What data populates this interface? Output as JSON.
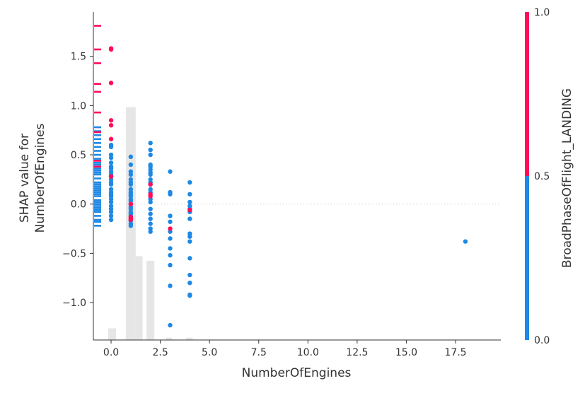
{
  "colors": {
    "low": "#1E88E5",
    "high": "#FF0D57",
    "hist": "#e6e6e6",
    "axis": "#333333",
    "zero_line": "#cccccc"
  },
  "chart_data": {
    "type": "scatter",
    "title": "",
    "xlabel": "NumberOfEngines",
    "ylabel_lines": [
      "SHAP value for",
      "NumberOfEngines"
    ],
    "xlim": [
      -0.9,
      19.8
    ],
    "ylim": [
      -1.38,
      1.95
    ],
    "xticks": [
      0.0,
      2.5,
      5.0,
      7.5,
      10.0,
      12.5,
      15.0,
      17.5
    ],
    "xtick_labels": [
      "0.0",
      "2.5",
      "5.0",
      "7.5",
      "10.0",
      "12.5",
      "15.0",
      "17.5"
    ],
    "yticks": [
      -1.0,
      -0.5,
      0.0,
      0.5,
      1.0,
      1.5
    ],
    "ytick_labels": [
      "−1.0",
      "−0.5",
      "0.0",
      "0.5",
      "1.0",
      "1.5"
    ],
    "zero_line": true,
    "colorbar": {
      "label": "BroadPhaseOfFlight_LANDING",
      "min_label": "0.0",
      "mid_label": "0.5",
      "max_label": "1.0",
      "split": 0.5
    },
    "missing_ticks_low": [
      0.78,
      0.74,
      0.7,
      0.66,
      0.62,
      0.58,
      0.54,
      0.5,
      0.46,
      0.42,
      0.4,
      0.38,
      0.36,
      0.34,
      0.32,
      0.3,
      0.26,
      0.22,
      0.2,
      0.18,
      0.16,
      0.14,
      0.12,
      0.1,
      0.08,
      0.04,
      0.02,
      0.0,
      -0.02,
      -0.04,
      -0.06,
      -0.08,
      -0.12,
      -0.16,
      -0.18,
      -0.22
    ],
    "missing_ticks_high": [
      1.81,
      1.57,
      1.43,
      1.22,
      1.14,
      0.93,
      0.73,
      0.44,
      0.38
    ],
    "histogram": [
      {
        "x0": -0.15,
        "x1": 0.25,
        "height": 0.05
      },
      {
        "x0": 0.75,
        "x1": 1.25,
        "height": 1.0
      },
      {
        "x0": 1.25,
        "x1": 1.6,
        "height": 0.36
      },
      {
        "x0": 1.8,
        "x1": 2.2,
        "height": 0.34
      },
      {
        "x0": 2.8,
        "x1": 3.1,
        "height": 0.01
      },
      {
        "x0": 3.8,
        "x1": 4.15,
        "height": 0.01
      }
    ],
    "points_low": [
      [
        0.0,
        0.6
      ],
      [
        0.0,
        0.58
      ],
      [
        0.0,
        0.5
      ],
      [
        0.0,
        0.47
      ],
      [
        0.0,
        0.42
      ],
      [
        0.0,
        0.38
      ],
      [
        0.0,
        0.36
      ],
      [
        0.0,
        0.33
      ],
      [
        0.0,
        0.3
      ],
      [
        0.0,
        0.25
      ],
      [
        0.0,
        0.22
      ],
      [
        0.0,
        0.2
      ],
      [
        0.0,
        0.15
      ],
      [
        0.0,
        0.12
      ],
      [
        0.0,
        0.08
      ],
      [
        0.0,
        0.05
      ],
      [
        0.0,
        0.02
      ],
      [
        0.0,
        -0.02
      ],
      [
        0.0,
        -0.05
      ],
      [
        0.0,
        -0.08
      ],
      [
        0.0,
        -0.12
      ],
      [
        0.0,
        -0.16
      ],
      [
        0.0,
        0.28
      ],
      [
        0.0,
        0.1
      ],
      [
        1.0,
        0.48
      ],
      [
        1.0,
        0.4
      ],
      [
        1.0,
        0.33
      ],
      [
        1.0,
        0.3
      ],
      [
        1.0,
        0.25
      ],
      [
        1.0,
        0.22
      ],
      [
        1.0,
        0.2
      ],
      [
        1.0,
        0.15
      ],
      [
        1.0,
        0.12
      ],
      [
        1.0,
        0.1
      ],
      [
        1.0,
        0.08
      ],
      [
        1.0,
        0.05
      ],
      [
        1.0,
        0.03
      ],
      [
        1.0,
        0.0
      ],
      [
        1.0,
        -0.03
      ],
      [
        1.0,
        -0.05
      ],
      [
        1.0,
        -0.08
      ],
      [
        1.0,
        -0.1
      ],
      [
        1.0,
        -0.12
      ],
      [
        1.0,
        -0.17
      ],
      [
        1.0,
        -0.2
      ],
      [
        1.0,
        -0.22
      ],
      [
        2.0,
        0.62
      ],
      [
        2.0,
        0.55
      ],
      [
        2.0,
        0.5
      ],
      [
        2.0,
        0.4
      ],
      [
        2.0,
        0.38
      ],
      [
        2.0,
        0.35
      ],
      [
        2.0,
        0.32
      ],
      [
        2.0,
        0.3
      ],
      [
        2.0,
        0.25
      ],
      [
        2.0,
        0.22
      ],
      [
        2.0,
        0.2
      ],
      [
        2.0,
        0.15
      ],
      [
        2.0,
        0.12
      ],
      [
        2.0,
        0.05
      ],
      [
        2.0,
        0.02
      ],
      [
        2.0,
        -0.05
      ],
      [
        2.0,
        -0.1
      ],
      [
        2.0,
        -0.15
      ],
      [
        2.0,
        -0.2
      ],
      [
        2.0,
        -0.25
      ],
      [
        2.0,
        -0.28
      ],
      [
        3.0,
        0.33
      ],
      [
        3.0,
        0.12
      ],
      [
        3.0,
        0.1
      ],
      [
        3.0,
        -0.12
      ],
      [
        3.0,
        -0.18
      ],
      [
        3.0,
        -0.28
      ],
      [
        3.0,
        -0.35
      ],
      [
        3.0,
        -0.45
      ],
      [
        3.0,
        -0.52
      ],
      [
        3.0,
        -0.62
      ],
      [
        3.0,
        -0.83
      ],
      [
        3.0,
        -1.23
      ],
      [
        4.0,
        0.22
      ],
      [
        4.0,
        0.1
      ],
      [
        4.0,
        0.02
      ],
      [
        4.0,
        -0.02
      ],
      [
        4.0,
        -0.05
      ],
      [
        4.0,
        -0.08
      ],
      [
        4.0,
        -0.15
      ],
      [
        4.0,
        -0.3
      ],
      [
        4.0,
        -0.33
      ],
      [
        4.0,
        -0.38
      ],
      [
        4.0,
        -0.55
      ],
      [
        4.0,
        -0.72
      ],
      [
        4.0,
        -0.8
      ],
      [
        4.0,
        -0.92
      ],
      [
        4.0,
        -0.93
      ],
      [
        18.0,
        -0.38
      ]
    ],
    "points_high": [
      [
        0.0,
        1.58
      ],
      [
        0.0,
        1.57
      ],
      [
        0.0,
        1.23
      ],
      [
        0.0,
        0.85
      ],
      [
        0.0,
        0.8
      ],
      [
        0.0,
        0.66
      ],
      [
        0.0,
        0.28
      ],
      [
        1.0,
        0.0
      ],
      [
        1.0,
        -0.13
      ],
      [
        1.0,
        -0.15
      ],
      [
        1.0,
        -0.16
      ],
      [
        2.0,
        0.2
      ],
      [
        2.0,
        0.1
      ],
      [
        2.0,
        0.08
      ],
      [
        3.0,
        -0.25
      ],
      [
        4.0,
        -0.06
      ]
    ]
  }
}
